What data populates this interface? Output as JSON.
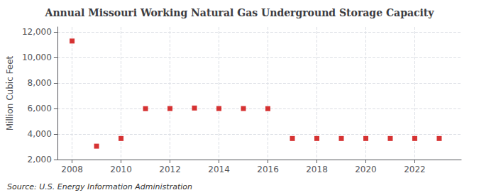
{
  "chart_data": {
    "type": "scatter",
    "title": "Annual Missouri Working Natural Gas Underground Storage Capacity",
    "ylabel": "Million Cubic Feet",
    "annotations": [
      "Source: U.S. Energy Information Administration"
    ],
    "x": [
      2008,
      2009,
      2010,
      2011,
      2012,
      2013,
      2014,
      2015,
      2016,
      2017,
      2018,
      2019,
      2020,
      2021,
      2022,
      2023
    ],
    "values": [
      11295,
      3050,
      3650,
      5990,
      6000,
      6040,
      6000,
      6000,
      5990,
      3650,
      3650,
      3650,
      3650,
      3650,
      3650,
      3650
    ],
    "color": "#cc0000",
    "marker": "square",
    "xlim": [
      2007.4,
      2023.9
    ],
    "xticks": [
      2008,
      2010,
      2012,
      2014,
      2016,
      2018,
      2020,
      2022
    ],
    "ylim": [
      2000,
      12400
    ],
    "yticks": [
      {
        "value": 2000,
        "label": "2,000"
      },
      {
        "value": 4000,
        "label": "4,000"
      },
      {
        "value": 6000,
        "label": "6,000"
      },
      {
        "value": 8000,
        "label": "8,000"
      },
      {
        "value": 10000,
        "label": "10,000"
      },
      {
        "value": 12000,
        "label": "12,000"
      }
    ],
    "grid": true
  }
}
